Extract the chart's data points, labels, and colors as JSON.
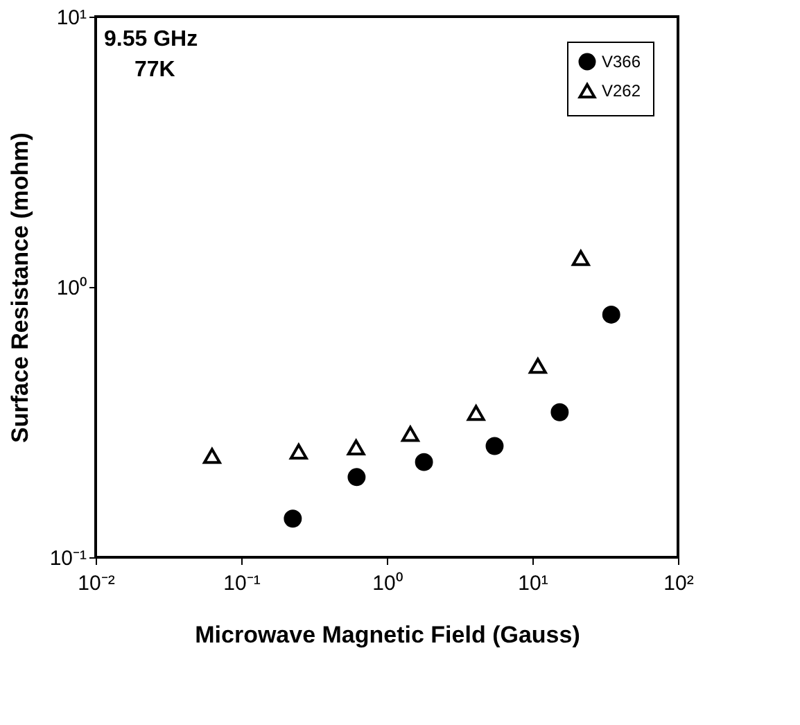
{
  "chart_data": {
    "type": "scatter",
    "xlabel": "Microwave Magnetic Field (Gauss)",
    "ylabel": "Surface Resistance (mohm)",
    "annotations": [
      "9.55  GHz",
      "77K"
    ],
    "log": "xy",
    "grid": false,
    "legend": "top right",
    "xlim": [
      0.01,
      100
    ],
    "ylim": [
      0.1,
      10
    ],
    "xticks": [
      {
        "value": 0.01,
        "label": "10⁻²"
      },
      {
        "value": 0.1,
        "label": "10⁻¹"
      },
      {
        "value": 1,
        "label": "10⁰"
      },
      {
        "value": 10,
        "label": "10¹"
      },
      {
        "value": 100,
        "label": "10²"
      }
    ],
    "yticks": [
      {
        "value": 0.1,
        "label": "10⁻¹"
      },
      {
        "value": 1,
        "label": "10⁰"
      },
      {
        "value": 10,
        "label": "10¹"
      }
    ],
    "series": [
      {
        "name": "V366",
        "color": "#000000",
        "marker": "circle",
        "x": [
          0.226,
          0.62,
          1.8,
          5.5,
          15.4,
          34.8
        ],
        "values": [
          0.139,
          0.198,
          0.225,
          0.258,
          0.344,
          0.79
        ]
      },
      {
        "name": "V262",
        "color": "#000000",
        "marker": "triangle",
        "x": [
          0.063,
          0.248,
          0.615,
          1.45,
          4.1,
          10.9,
          21.5
        ],
        "values": [
          0.237,
          0.246,
          0.255,
          0.286,
          0.342,
          0.511,
          1.28
        ]
      }
    ]
  }
}
